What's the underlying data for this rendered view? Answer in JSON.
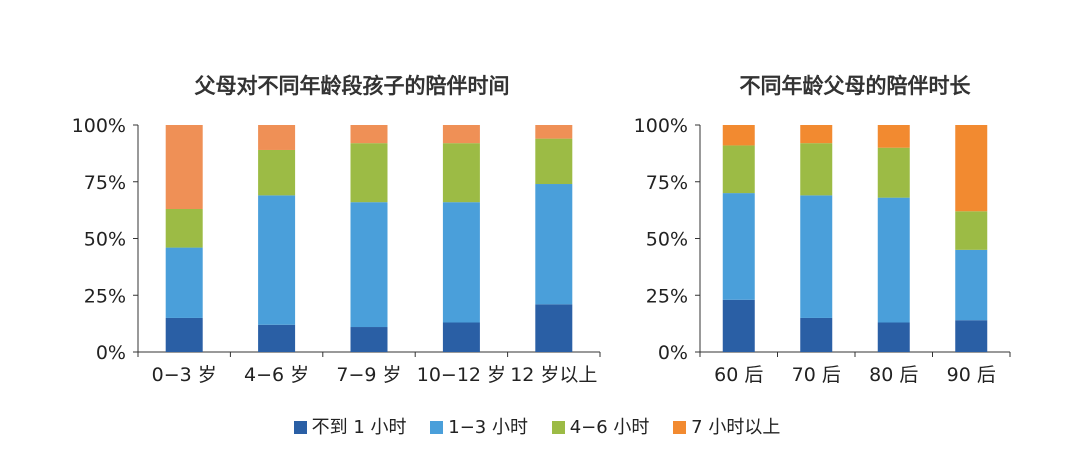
{
  "colors": {
    "s1": "#2a5fa5",
    "s2": "#4a9fda",
    "s3": "#9cbb45",
    "s4_left": "#ef9056",
    "s4_right": "#f28a30",
    "axis": "#333333"
  },
  "legend": [
    {
      "label": "不到 1 小时",
      "color": "#2a5fa5"
    },
    {
      "label": "1−3 小时",
      "color": "#4a9fda"
    },
    {
      "label": "4−6 小时",
      "color": "#9cbb45"
    },
    {
      "label": "7 小时以上",
      "color": "#f28a30"
    }
  ],
  "chart_data": [
    {
      "type": "bar",
      "stacked": true,
      "title": "父母对不同年龄段孩子的陪伴时间",
      "categories": [
        "0−3 岁",
        "4−6 岁",
        "7−9 岁",
        "10−12 岁",
        "12 岁以上"
      ],
      "y_ticks": [
        "0%",
        "25%",
        "50%",
        "75%",
        "100%"
      ],
      "ylim": [
        0,
        100
      ],
      "series": [
        {
          "name": "不到 1 小时",
          "values": [
            15,
            12,
            11,
            13,
            21
          ]
        },
        {
          "name": "1−3 小时",
          "values": [
            31,
            57,
            55,
            53,
            53
          ]
        },
        {
          "name": "4−6 小时",
          "values": [
            17,
            20,
            26,
            26,
            20
          ]
        },
        {
          "name": "7 小时以上",
          "values": [
            37,
            11,
            8,
            8,
            6
          ]
        }
      ]
    },
    {
      "type": "bar",
      "stacked": true,
      "title": "不同年龄父母的陪伴时长",
      "categories": [
        "60 后",
        "70 后",
        "80 后",
        "90 后"
      ],
      "y_ticks": [
        "0%",
        "25%",
        "50%",
        "75%",
        "100%"
      ],
      "ylim": [
        0,
        100
      ],
      "series": [
        {
          "name": "不到 1 小时",
          "values": [
            23,
            15,
            13,
            14
          ]
        },
        {
          "name": "1−3 小时",
          "values": [
            47,
            54,
            55,
            31
          ]
        },
        {
          "name": "4−6 小时",
          "values": [
            21,
            23,
            22,
            17
          ]
        },
        {
          "name": "7 小时以上",
          "values": [
            9,
            8,
            10,
            38
          ]
        }
      ]
    }
  ]
}
